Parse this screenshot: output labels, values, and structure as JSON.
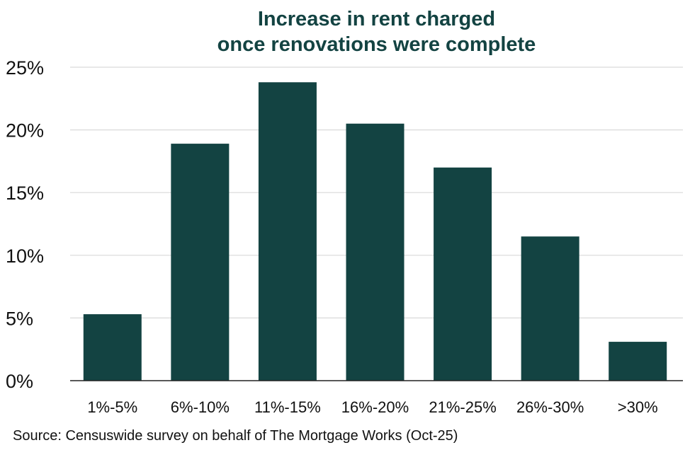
{
  "chart_data": {
    "type": "bar",
    "title_lines": [
      "Increase in rent charged",
      "once renovations were complete"
    ],
    "categories": [
      "1%-5%",
      "6%-10%",
      "11%-15%",
      "16%-20%",
      "21%-25%",
      "26%-30%",
      ">30%"
    ],
    "values": [
      5.3,
      18.9,
      23.8,
      20.5,
      17.0,
      11.5,
      3.1
    ],
    "ylim": [
      0,
      25
    ],
    "yticks": [
      0,
      5,
      10,
      15,
      20,
      25
    ],
    "ytick_labels": [
      "0%",
      "5%",
      "10%",
      "15%",
      "20%",
      "25%"
    ],
    "grid": true,
    "bar_color": "#134342",
    "grid_color": "#d9d9d9"
  },
  "source": "Source: Censuswide survey on behalf of The Mortgage Works (Oct-25)"
}
